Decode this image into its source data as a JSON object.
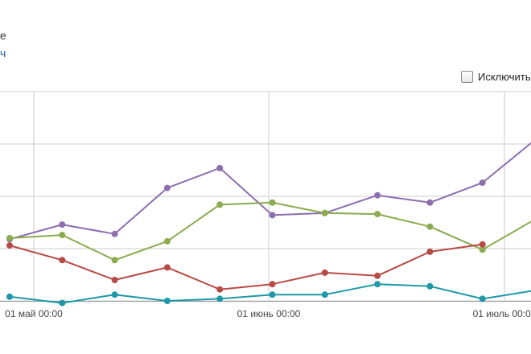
{
  "header": {
    "title_fragment": "e",
    "link_fragment": "ч"
  },
  "controls": {
    "exclude_checkbox_label": "Исключить",
    "exclude_checked": false
  },
  "chart_data": {
    "type": "line",
    "title": "",
    "xlabel": "",
    "ylabel": "",
    "x_tick_labels": [
      "01 май 00:00",
      "01 июнь 00:00",
      "01 июль 00:00"
    ],
    "grid": true,
    "ylim": [
      0,
      200
    ],
    "series": [
      {
        "color": "#8c6fb0",
        "values": [
          59,
          73,
          64,
          108,
          127,
          82,
          84,
          101,
          94,
          113,
          154
        ]
      },
      {
        "color": "#8aab4e",
        "values": [
          60,
          63,
          39,
          57,
          92,
          94,
          84,
          83,
          71,
          49,
          78
        ]
      },
      {
        "color": "#b84a45",
        "values": [
          53,
          39,
          20,
          32,
          11,
          16,
          27,
          24,
          47,
          54
        ]
      },
      {
        "color": "#1e98a8",
        "values": [
          4,
          -2,
          6,
          0,
          2,
          6,
          6,
          16,
          14,
          2,
          10
        ]
      }
    ]
  }
}
